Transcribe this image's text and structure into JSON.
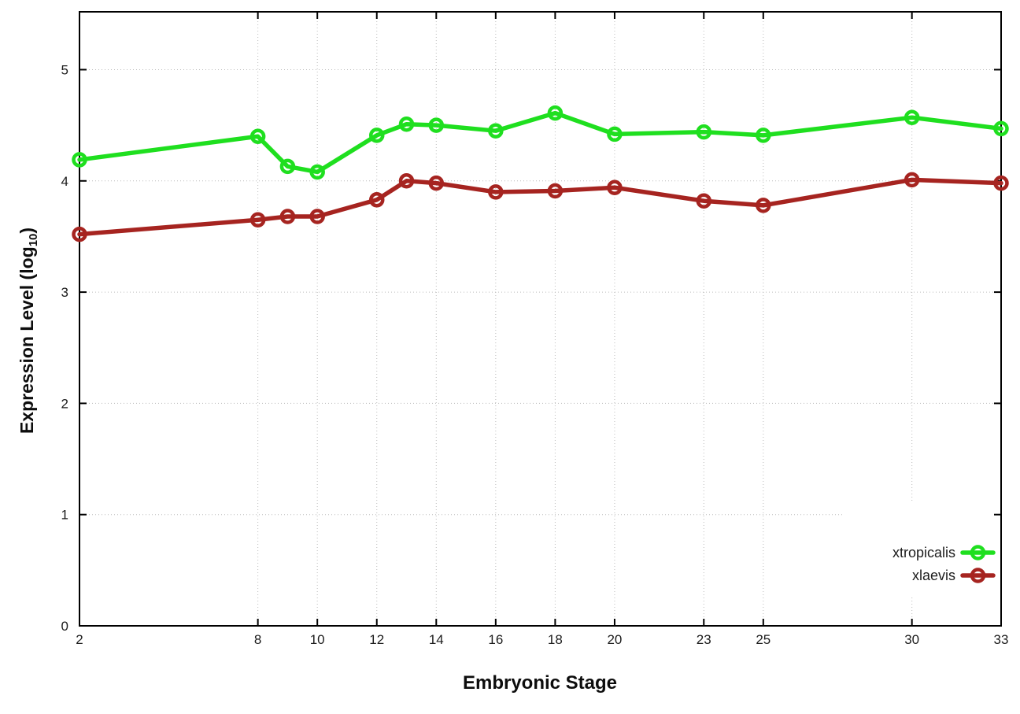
{
  "chart_data": {
    "type": "line",
    "title": "",
    "xlabel": "Embryonic Stage",
    "ylabel_main": "Expression Level (log",
    "ylabel_sub": "10",
    "ylabel_end": ")",
    "xlim": [
      2,
      33
    ],
    "ylim": [
      0,
      5.52
    ],
    "x_ticks": [
      "2",
      "8",
      "10",
      "12",
      "14",
      "16",
      "18",
      "20",
      "23",
      "25",
      "30",
      "33"
    ],
    "x_tick_values": [
      2,
      8,
      10,
      12,
      14,
      16,
      18,
      20,
      23,
      25,
      30,
      33
    ],
    "y_ticks": [
      "0",
      "1",
      "2",
      "3",
      "4",
      "5"
    ],
    "y_tick_values": [
      0,
      1,
      2,
      3,
      4,
      5
    ],
    "grid": true,
    "legend_position": "bottom-right-inside",
    "x": [
      2,
      8,
      9,
      10,
      12,
      13,
      14,
      16,
      18,
      20,
      23,
      25,
      30,
      33
    ],
    "series": [
      {
        "name": "xtropicalis",
        "color": "#1fdf1f",
        "values": [
          4.19,
          4.4,
          4.13,
          4.08,
          4.41,
          4.51,
          4.5,
          4.45,
          4.61,
          4.42,
          4.44,
          4.41,
          4.57,
          4.47
        ]
      },
      {
        "name": "xlaevis",
        "color": "#a62420",
        "values": [
          3.52,
          3.65,
          3.68,
          3.68,
          3.83,
          4.0,
          3.98,
          3.9,
          3.91,
          3.94,
          3.82,
          3.78,
          4.01,
          3.98
        ]
      }
    ],
    "colors": {
      "border": "#000000",
      "grid": "#bcbcbc",
      "tick_text": "#1c1c1c"
    }
  }
}
